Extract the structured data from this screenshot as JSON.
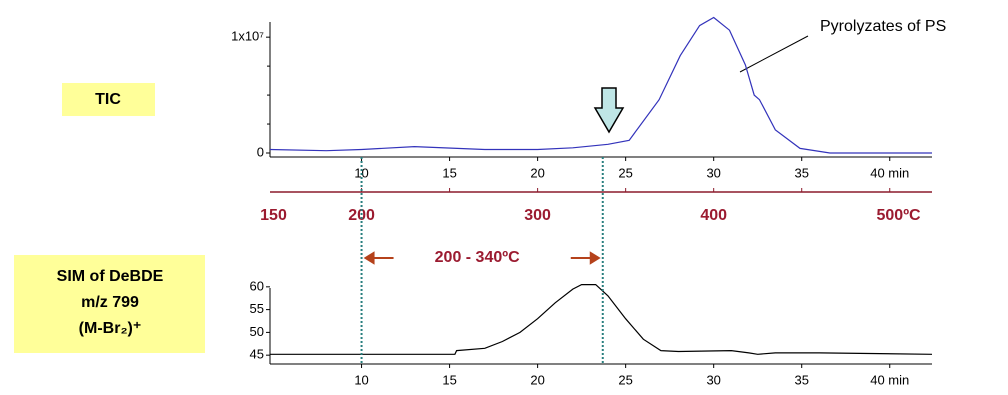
{
  "chart_data": [
    {
      "type": "line",
      "name": "TIC",
      "color": "#3333bb",
      "x": [
        4.8,
        8,
        10,
        13,
        17,
        20,
        22,
        24,
        25.2,
        26.9,
        28.1,
        29.2,
        30,
        30.9,
        31.8,
        32.3,
        32.6,
        33.5,
        34.9,
        36.6,
        42.4
      ],
      "values": [
        300000,
        200000,
        300000,
        550000,
        300000,
        300000,
        450000,
        750000,
        1100000,
        4600000,
        8400000,
        11000000,
        11700000,
        10600000,
        7600000,
        5000000,
        4600000,
        2000000,
        400000,
        0,
        0
      ],
      "xlim": [
        4.8,
        42.4
      ],
      "xticks": [
        10,
        15,
        20,
        25,
        30,
        35,
        {
          "value": 40,
          "label": "40 min"
        }
      ],
      "ylim": [
        0,
        12000000
      ],
      "yticks": [
        {
          "value": 0,
          "label": "0"
        },
        {
          "value": 10000000,
          "label": "1x10⁷"
        }
      ],
      "minor_yticks": [
        2500000,
        5000000,
        7500000
      ],
      "annotation": "Pyrolyzates of PS"
    },
    {
      "type": "line",
      "name": "SIM",
      "color": "#000000",
      "x": [
        4.8,
        15.3,
        15.4,
        17,
        18,
        19,
        20,
        21,
        22,
        22.5,
        23.3,
        24,
        25,
        26,
        27,
        28,
        31,
        32,
        32.5,
        33.5,
        36,
        42.4
      ],
      "values": [
        45.2,
        45.2,
        46,
        46.5,
        48,
        50,
        53,
        56.5,
        59.5,
        60.5,
        60.5,
        58,
        53,
        48.5,
        46,
        45.8,
        46,
        45.5,
        45.2,
        45.5,
        45.5,
        45.2
      ],
      "xlim": [
        4.8,
        42.4
      ],
      "xticks": [
        10,
        15,
        20,
        25,
        30,
        35,
        {
          "value": 40,
          "label": "40 min"
        }
      ],
      "ylim": [
        43.5,
        61.5
      ],
      "yticks": [
        45,
        50,
        55,
        60
      ]
    }
  ],
  "temperature_axis": {
    "temperatures": [
      150,
      200,
      300,
      400,
      {
        "value": 500,
        "label": "500ºC"
      }
    ],
    "times": [
      5,
      10,
      20,
      30,
      40.5
    ]
  },
  "range": {
    "label": "200 - 340ºC",
    "start": 10,
    "end": 23.7
  },
  "labels": {
    "tic": "TIC",
    "sim": [
      "SIM of DeBDE",
      "m/z 799",
      "(M-Br₂)⁺"
    ]
  }
}
